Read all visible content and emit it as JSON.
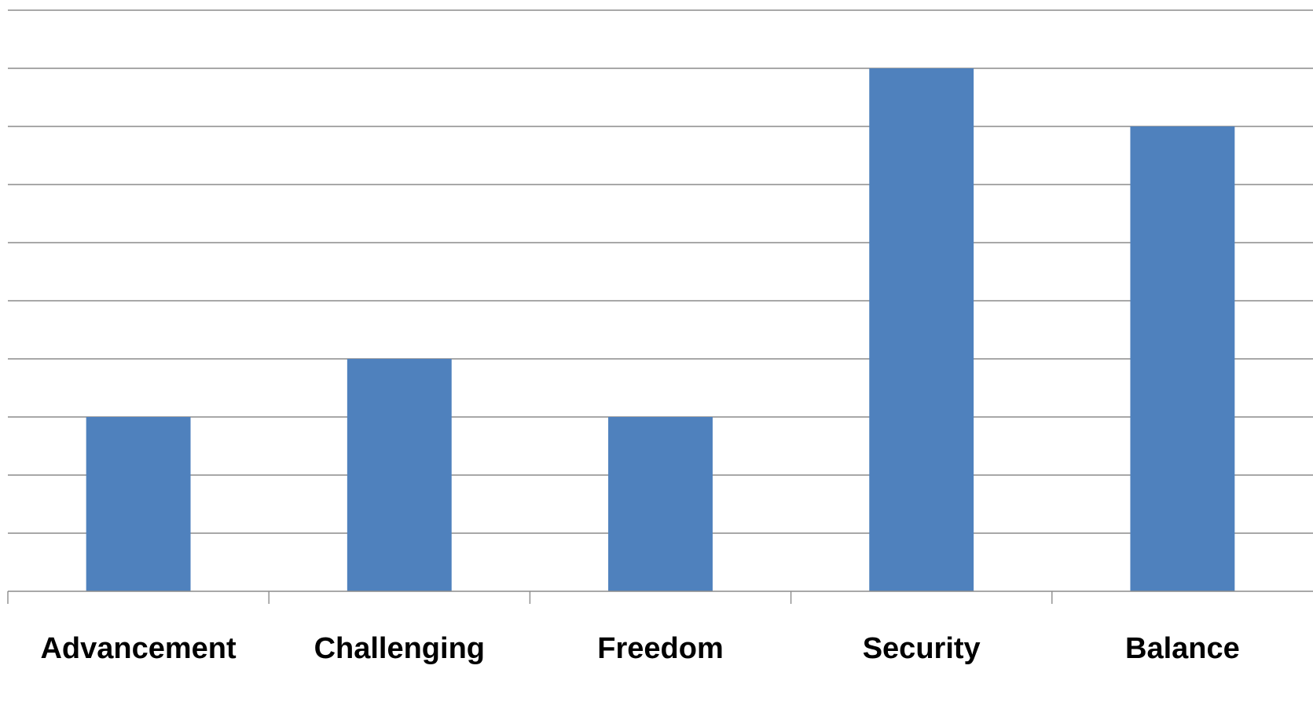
{
  "chart_data": {
    "type": "bar",
    "categories": [
      "Advancement",
      "Challenging",
      "Freedom",
      "Security",
      "Balance"
    ],
    "values": [
      3,
      4,
      3,
      9,
      8
    ],
    "ylim": [
      0,
      10
    ],
    "y_major_step": 1,
    "grid": true,
    "legend": "none",
    "title": "",
    "xlabel": "",
    "ylabel": "",
    "y_tick_labels_visible": false,
    "bar_color": "#4f81bd",
    "grid_color": "#8c8c8c"
  }
}
